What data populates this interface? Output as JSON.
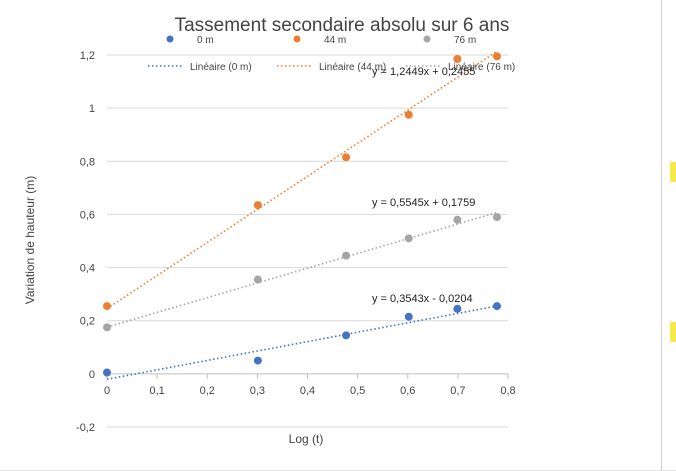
{
  "chart_data": {
    "type": "scatter",
    "title": "Tassement secondaire absolu sur 6 ans",
    "xlabel": "Log (t)",
    "ylabel": "Variation de hauteur (m)",
    "xlim": [
      0,
      0.8
    ],
    "ylim": [
      -0.2,
      1.2
    ],
    "xticks": [
      0,
      0.1,
      0.2,
      0.3,
      0.4,
      0.5,
      0.6,
      0.7,
      0.8
    ],
    "yticks": [
      -0.2,
      0,
      0.2,
      0.4,
      0.6,
      0.8,
      1,
      1.2
    ],
    "xtick_labels": [
      "0",
      "0,1",
      "0,2",
      "0,3",
      "0,4",
      "0,5",
      "0,6",
      "0,7",
      "0,8"
    ],
    "ytick_labels": [
      "-0,2",
      "0",
      "0,2",
      "0,4",
      "0,6",
      "0,8",
      "1",
      "1,2"
    ],
    "grid": "horizontal",
    "legend_position": "top",
    "series": [
      {
        "name": "0 m",
        "color": "#4472C4",
        "x": [
          0,
          0.301,
          0.477,
          0.602,
          0.699,
          0.778
        ],
        "y": [
          0.005,
          0.05,
          0.145,
          0.215,
          0.245,
          0.255
        ],
        "trendline": {
          "name": "Linéaire (0 m)",
          "slope": 0.3543,
          "intercept": -0.0204,
          "equation": "y = 0,3543x - 0,0204"
        }
      },
      {
        "name": "44 m",
        "color": "#ED7D31",
        "x": [
          0,
          0.301,
          0.477,
          0.602,
          0.699,
          0.778
        ],
        "y": [
          0.255,
          0.635,
          0.815,
          0.975,
          1.185,
          1.195
        ],
        "trendline": {
          "name": "Linéaire (44 m)",
          "slope": 1.2449,
          "intercept": 0.2455,
          "equation": "y = 1,2449x + 0,2455"
        }
      },
      {
        "name": "76 m",
        "color": "#A5A5A5",
        "x": [
          0,
          0.301,
          0.477,
          0.602,
          0.699,
          0.778
        ],
        "y": [
          0.175,
          0.355,
          0.445,
          0.51,
          0.58,
          0.59
        ],
        "trendline": {
          "name": "Linéaire (76 m)",
          "slope": 0.5545,
          "intercept": 0.1759,
          "equation": "y = 0,5545x + 0,1759"
        }
      }
    ]
  }
}
